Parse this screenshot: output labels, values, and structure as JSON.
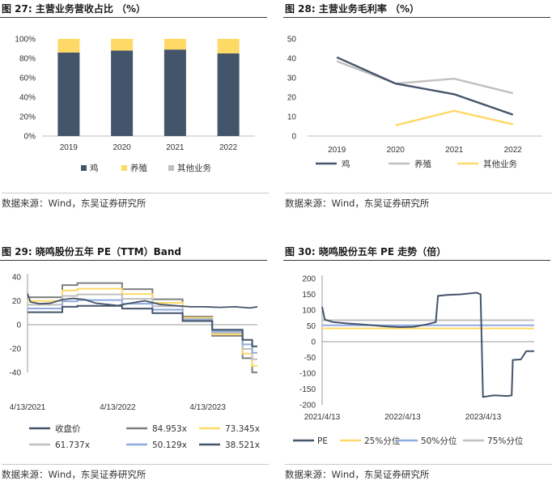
{
  "source_text": "数据来源：Wind，东吴证券研究所",
  "chart_data": [
    {
      "figure_title": "图 27:  主营业务营收占比 （%）",
      "type": "bar",
      "stacked": true,
      "categories": [
        "2019",
        "2020",
        "2021",
        "2022"
      ],
      "series": [
        {
          "name": "鸡",
          "color": "#44546a",
          "values": [
            86,
            88,
            89,
            85
          ]
        },
        {
          "name": "养殖",
          "color": "#ffd966",
          "values": [
            14,
            12,
            11,
            15
          ]
        },
        {
          "name": "其他业务",
          "color": "#c0c0c0",
          "values": [
            0,
            0,
            0,
            0
          ]
        }
      ],
      "ylim": [
        0,
        100
      ],
      "yticks": [
        "0%",
        "20%",
        "40%",
        "60%",
        "80%",
        "100%"
      ],
      "legend": "bottom"
    },
    {
      "figure_title": "图 28:  主营业务毛利率  （%）",
      "type": "line",
      "categories": [
        "2019",
        "2020",
        "2021",
        "2022"
      ],
      "series": [
        {
          "name": "鸡",
          "color": "#44546a",
          "values": [
            40.5,
            27,
            21.5,
            11
          ]
        },
        {
          "name": "养殖",
          "color": "#bfbfbf",
          "values": [
            38.5,
            27,
            29.5,
            22
          ]
        },
        {
          "name": "其他业务",
          "color": "#ffd966",
          "values": [
            null,
            5.5,
            13,
            6
          ]
        }
      ],
      "ylim": [
        0,
        50
      ],
      "yticks": [
        "0",
        "10",
        "20",
        "30",
        "40",
        "50"
      ],
      "legend": "bottom"
    },
    {
      "figure_title": "图 29:  晓鸣股份五年 PE（TTM）Band",
      "type": "line",
      "x_range": [
        "2021-04-13",
        "2023-10-31"
      ],
      "xticks": [
        "4/13/2021",
        "4/13/2022",
        "4/13/2023"
      ],
      "ylim": [
        -40,
        40
      ],
      "yticks": [
        "40",
        "20",
        "0",
        "-20",
        "-40"
      ],
      "series": [
        {
          "name": "收盘价",
          "color": "#44546a"
        },
        {
          "name": "84.953x",
          "color": "#7f7f7f"
        },
        {
          "name": "73.345x",
          "color": "#ffd966"
        },
        {
          "name": "61.737x",
          "color": "#bfbfbf"
        },
        {
          "name": "50.129x",
          "color": "#8faadc"
        },
        {
          "name": "38.521x",
          "color": "#44546a"
        }
      ],
      "band_eps_steps": [
        {
          "x": "2021-04-13",
          "eps": 0.27
        },
        {
          "x": "2021-09-01",
          "eps": 0.39
        },
        {
          "x": "2021-11-01",
          "eps": 0.41
        },
        {
          "x": "2022-05-01",
          "eps": 0.35
        },
        {
          "x": "2022-09-01",
          "eps": 0.25
        },
        {
          "x": "2023-01-01",
          "eps": 0.08
        },
        {
          "x": "2023-05-01",
          "eps": -0.11
        },
        {
          "x": "2023-09-01",
          "eps": -0.33
        },
        {
          "x": "2023-10-10",
          "eps": -0.47
        }
      ],
      "price_points": [
        {
          "x": "2021-04-13",
          "y": 26
        },
        {
          "x": "2021-04-25",
          "y": 19
        },
        {
          "x": "2021-06-01",
          "y": 17.5
        },
        {
          "x": "2021-07-15",
          "y": 18
        },
        {
          "x": "2021-09-01",
          "y": 21
        },
        {
          "x": "2021-10-15",
          "y": 22
        },
        {
          "x": "2021-12-01",
          "y": 21
        },
        {
          "x": "2022-01-15",
          "y": 18
        },
        {
          "x": "2022-03-01",
          "y": 17
        },
        {
          "x": "2022-04-15",
          "y": 16
        },
        {
          "x": "2022-06-01",
          "y": 18
        },
        {
          "x": "2022-08-01",
          "y": 20
        },
        {
          "x": "2022-10-01",
          "y": 17
        },
        {
          "x": "2022-12-01",
          "y": 16
        },
        {
          "x": "2023-02-01",
          "y": 15
        },
        {
          "x": "2023-04-01",
          "y": 15
        },
        {
          "x": "2023-06-01",
          "y": 14.5
        },
        {
          "x": "2023-08-01",
          "y": 15
        },
        {
          "x": "2023-10-01",
          "y": 14
        },
        {
          "x": "2023-10-31",
          "y": 15
        }
      ],
      "legend": "bottom"
    },
    {
      "figure_title": "图 30:  晓鸣股份五年 PE 走势（倍）",
      "type": "line",
      "x_range": [
        "2021-04-13",
        "2023-11-30"
      ],
      "xticks": [
        "2021/4/13",
        "2022/4/13",
        "2023/4/13"
      ],
      "ylim": [
        -200,
        200
      ],
      "yticks": [
        "200",
        "150",
        "100",
        "50",
        "0",
        "-50",
        "-100",
        "-150",
        "-200"
      ],
      "series": [
        {
          "name": "PE",
          "color": "#44546a",
          "points": [
            {
              "x": "2021-04-13",
              "y": 110
            },
            {
              "x": "2021-04-25",
              "y": 70
            },
            {
              "x": "2021-06-01",
              "y": 62
            },
            {
              "x": "2021-08-01",
              "y": 58
            },
            {
              "x": "2021-10-01",
              "y": 55
            },
            {
              "x": "2021-12-01",
              "y": 52
            },
            {
              "x": "2022-02-01",
              "y": 48
            },
            {
              "x": "2022-04-01",
              "y": 46
            },
            {
              "x": "2022-06-01",
              "y": 47
            },
            {
              "x": "2022-08-01",
              "y": 55
            },
            {
              "x": "2022-09-10",
              "y": 62
            },
            {
              "x": "2022-09-20",
              "y": 145
            },
            {
              "x": "2022-11-01",
              "y": 148
            },
            {
              "x": "2023-01-01",
              "y": 150
            },
            {
              "x": "2023-03-15",
              "y": 155
            },
            {
              "x": "2023-04-01",
              "y": 150
            },
            {
              "x": "2023-04-12",
              "y": -175
            },
            {
              "x": "2023-06-01",
              "y": -170
            },
            {
              "x": "2023-08-01",
              "y": -172
            },
            {
              "x": "2023-08-20",
              "y": -170
            },
            {
              "x": "2023-08-25",
              "y": -58
            },
            {
              "x": "2023-10-01",
              "y": -56
            },
            {
              "x": "2023-10-25",
              "y": -30
            },
            {
              "x": "2023-11-30",
              "y": -30
            }
          ]
        },
        {
          "name": "25%分位",
          "color": "#ffd966",
          "value": 42
        },
        {
          "name": "50%分位",
          "color": "#8faadc",
          "value": 52
        },
        {
          "name": "75%分位",
          "color": "#bfbfbf",
          "value": 68
        }
      ],
      "legend": "bottom"
    }
  ]
}
